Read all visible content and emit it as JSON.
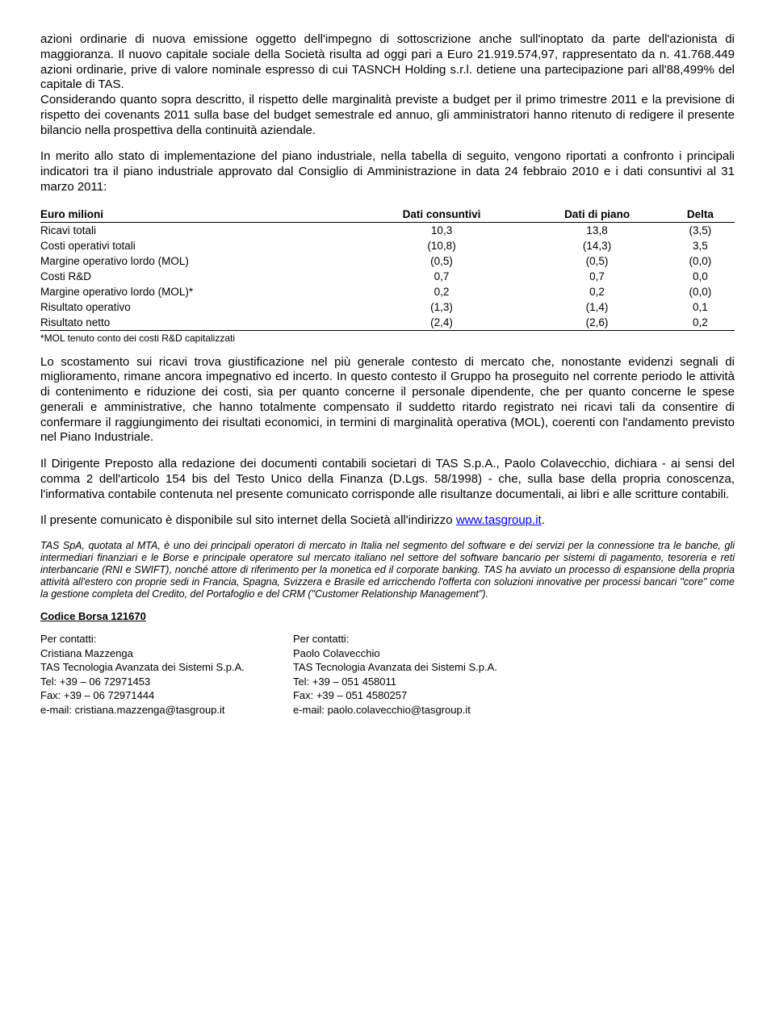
{
  "para1": "azioni ordinarie di nuova emissione oggetto dell'impegno di sottoscrizione anche sull'inoptato da parte dell'azionista di maggioranza. Il nuovo capitale sociale della Società risulta ad oggi pari a Euro 21.919.574,97, rappresentato da n. 41.768.449 azioni ordinarie, prive di valore nominale espresso di cui TASNCH Holding s.r.l. detiene una partecipazione pari all'88,499% del capitale di TAS.",
  "para2": "Considerando quanto sopra descritto, il rispetto delle marginalità previste a budget per il primo trimestre 2011 e la previsione di rispetto dei covenants 2011 sulla base del budget semestrale ed annuo, gli amministratori hanno ritenuto di redigere il presente bilancio nella prospettiva della continuità aziendale.",
  "para3": "In merito allo stato di implementazione del piano industriale, nella tabella di seguito, vengono riportati a confronto i principali indicatori tra il piano industriale approvato dal Consiglio di Amministrazione in data 24 febbraio 2010 e i dati consuntivi al 31 marzo 2011:",
  "table": {
    "headers": [
      "Euro milioni",
      "Dati consuntivi",
      "Dati di piano",
      "Delta"
    ],
    "rows": [
      [
        "Ricavi totali",
        "10,3",
        "13,8",
        "(3,5)"
      ],
      [
        "Costi operativi totali",
        "(10,8)",
        "(14,3)",
        "3,5"
      ],
      [
        "Margine operativo lordo (MOL)",
        "(0,5)",
        "(0,5)",
        "(0,0)"
      ],
      [
        "Costi R&D",
        "0,7",
        "0,7",
        "0,0"
      ],
      [
        "Margine operativo lordo (MOL)*",
        "0,2",
        "0,2",
        "(0,0)"
      ],
      [
        "Risultato operativo",
        "(1,3)",
        "(1,4)",
        "0,1"
      ],
      [
        "Risultato netto",
        "(2,4)",
        "(2,6)",
        "0,2"
      ]
    ]
  },
  "footnote": "*MOL tenuto conto dei costi R&D capitalizzati",
  "para4": "Lo scostamento sui ricavi trova giustificazione nel più generale contesto di mercato che, nonostante evidenzi segnali di miglioramento, rimane ancora impegnativo ed incerto. In questo contesto il Gruppo ha proseguito nel corrente periodo le attività di contenimento e riduzione dei costi, sia per quanto concerne il personale dipendente, che per quanto concerne le spese generali e amministrative, che hanno totalmente compensato il suddetto ritardo registrato nei ricavi tali da consentire di confermare il raggiungimento dei risultati economici, in termini di marginalità operativa (MOL), coerenti con l'andamento previsto nel Piano Industriale.",
  "para5": "Il Dirigente Preposto alla redazione dei documenti contabili societari di TAS S.p.A., Paolo Colavecchio, dichiara - ai sensi del comma 2 dell'articolo 154 bis del Testo Unico della Finanza (D.Lgs. 58/1998) - che, sulla base della propria conoscenza, l'informativa contabile contenuta nel presente comunicato corrisponde alle risultanze documentali, ai libri e alle scritture contabili.",
  "para6_text": "Il presente comunicato è disponibile sul sito internet della Società all'indirizzo ",
  "para6_link": "www.tasgroup.it",
  "para6_suffix": ".",
  "italic_block": "TAS SpA, quotata al MTA, è uno dei principali operatori di mercato in Italia nel segmento del software e dei servizi per la connessione tra le banche, gli intermediari finanziari e le Borse e principale operatore sul mercato italiano nel settore del software bancario per sistemi di pagamento, tesoreria e reti interbancarie (RNI e SWIFT), nonché attore di riferimento per la monetica ed il corporate banking. TAS ha avviato un processo di espansione della propria attività all'estero con proprie sedi in Francia, Spagna, Svizzera e Brasile ed arricchendo l'offerta con soluzioni innovative per processi bancari \"core\" come la gestione completa del Credito, del Portafoglio e del CRM (\"Customer Relationship Management\").",
  "codice": "Codice Borsa 121670",
  "contact_left": {
    "l1": "Per contatti:",
    "l2": "Cristiana Mazzenga",
    "l3": "TAS Tecnologia Avanzata dei Sistemi S.p.A.",
    "l4": "Tel: +39 – 06 72971453",
    "l5": "Fax: +39 – 06 72971444",
    "l6a": "e-mail: ",
    "l6b": "cristiana.mazzenga@tasgroup.it"
  },
  "contact_right": {
    "l1": "Per contatti:",
    "l2": "Paolo Colavecchio",
    "l3": "TAS Tecnologia Avanzata dei Sistemi S.p.A.",
    "l4": "Tel: +39 – 051 458011",
    "l5": "Fax: +39 – 051 4580257",
    "l6a": "e-mail: ",
    "l6b": "paolo.colavecchio@tasgroup.it"
  }
}
